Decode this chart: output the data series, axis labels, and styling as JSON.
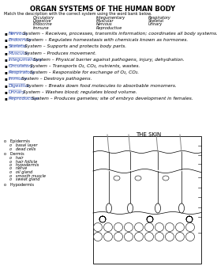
{
  "title": "ORGAN SYSTEMS OF THE HUMAN BODY",
  "instruction": "Match the description with the correct system using the word bank below.",
  "word_bank_col1": [
    "Circulatory",
    "Digestive",
    "Endocrine",
    "Immune"
  ],
  "word_bank_col2": [
    "Integumentary",
    "Muscular",
    "Nervous",
    "Reproductive"
  ],
  "word_bank_col3": [
    "Respiratory",
    "Skeletal",
    "Urinary"
  ],
  "answers": [
    [
      "Nervous",
      "System",
      "– Receives, processes, transmits information; coordinates all body systems."
    ],
    [
      "Endocrine",
      "System",
      "– Regulates homeostasis with chemicals known as hormones."
    ],
    [
      "Skeletal",
      "System",
      "– Supports and protects body parts."
    ],
    [
      "Muscular",
      "System",
      "– Produces movement."
    ],
    [
      "Integumentary",
      "System",
      "– Physical barrier against pathogens, injury, dehydration."
    ],
    [
      "Circulatory",
      "System",
      "– Transports O₂, CO₂, nutrients, wastes."
    ],
    [
      "Respiratory",
      "System",
      "– Responsible for exchange of O₂, CO₂."
    ],
    [
      "Immune",
      "System",
      "– Destroys pathogens."
    ],
    [
      "Digestive",
      "System",
      "– Breaks down food molecules to absorbable monomers."
    ],
    [
      "Urinary",
      "System",
      "– Washes blood; regulates blood volume."
    ],
    [
      "Reproductive",
      "System",
      "– Produces gametes; site of embryo development in females."
    ]
  ],
  "skin_title": "THE SKIN",
  "dermis_items": [
    "hair",
    "hair follicle",
    "hypodermis",
    "nerve",
    "oil gland",
    "smooth muscle",
    "sweat gland"
  ],
  "bg_color": "#ffffff",
  "text_color": "#000000",
  "answer_color": "#2244aa",
  "font_size_title": 6.0,
  "font_size_body": 4.2,
  "font_size_small": 3.6
}
